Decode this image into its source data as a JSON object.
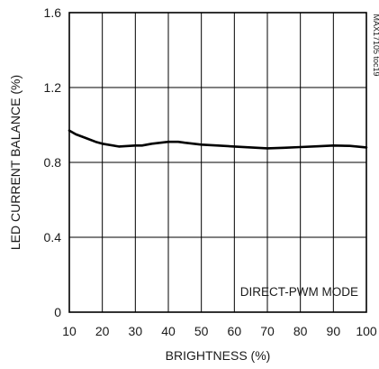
{
  "chart_data": {
    "type": "line",
    "title": "",
    "xlabel": "BRIGHTNESS (%)",
    "ylabel": "LED CURRENT BALANCE (%)",
    "xlim": [
      10,
      100
    ],
    "ylim": [
      0,
      1.6
    ],
    "x_ticks": [
      10,
      20,
      30,
      40,
      50,
      60,
      70,
      80,
      90,
      100
    ],
    "y_ticks": [
      0,
      0.4,
      0.8,
      1.2,
      1.6
    ],
    "x_tick_labels": [
      "10",
      "20",
      "30",
      "40",
      "50",
      "60",
      "70",
      "80",
      "90",
      "100"
    ],
    "y_tick_labels": [
      "0",
      "0.4",
      "0.8",
      "1.2",
      "1.6"
    ],
    "grid": true,
    "annotation": "DIRECT-PWM MODE",
    "figure_code": "MAX17105 toc19",
    "series": [
      {
        "x": [
          10,
          12,
          15,
          18,
          20,
          25,
          30,
          32,
          35,
          40,
          43,
          45,
          50,
          55,
          60,
          65,
          70,
          75,
          80,
          85,
          90,
          95,
          100
        ],
        "values": [
          0.97,
          0.95,
          0.93,
          0.91,
          0.9,
          0.885,
          0.89,
          0.89,
          0.9,
          0.91,
          0.91,
          0.905,
          0.895,
          0.89,
          0.885,
          0.88,
          0.875,
          0.878,
          0.882,
          0.886,
          0.89,
          0.888,
          0.88
        ]
      }
    ]
  }
}
